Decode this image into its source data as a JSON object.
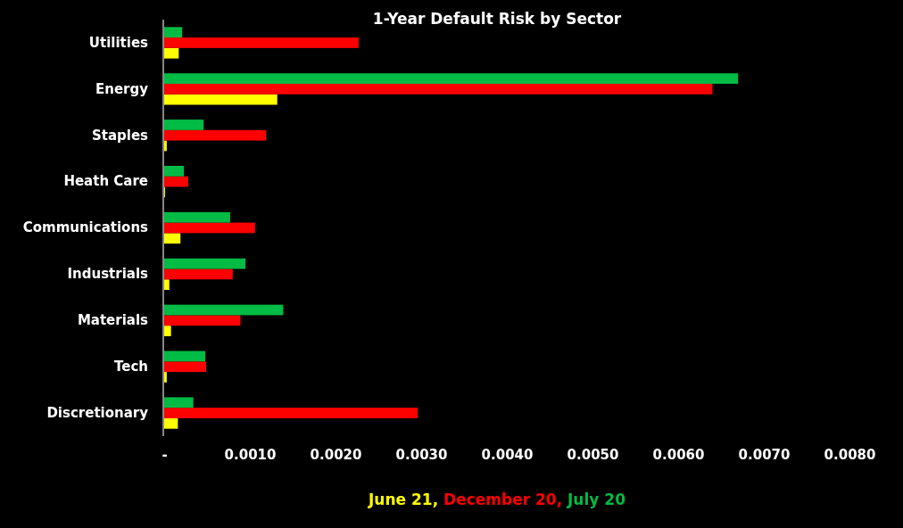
{
  "chart_data": {
    "type": "bar",
    "title": "1-Year Default Risk by Sector",
    "orientation": "horizontal",
    "categories": [
      "Utilities",
      "Energy",
      "Staples",
      "Heath Care",
      "Communications",
      "Industrials",
      "Materials",
      "Tech",
      "Discretionary"
    ],
    "series": [
      {
        "name": "June 21,",
        "color": "#ffff00",
        "values": [
          0.00017,
          0.00132,
          3e-05,
          1e-05,
          0.00019,
          6e-05,
          8e-05,
          3e-05,
          0.00016
        ]
      },
      {
        "name": "December 20,",
        "color": "#ff0000",
        "values": [
          0.00227,
          0.0064,
          0.00119,
          0.00028,
          0.00106,
          0.0008,
          0.00089,
          0.00049,
          0.00296
        ]
      },
      {
        "name": "July 20",
        "color": "#00bb44",
        "values": [
          0.00021,
          0.0067,
          0.00046,
          0.00023,
          0.00077,
          0.00095,
          0.00139,
          0.00048,
          0.00034
        ]
      }
    ],
    "xlim": [
      0,
      0.008
    ],
    "xticks": [
      {
        "value": 0,
        "label": "-"
      },
      {
        "value": 0.001,
        "label": "0.0010"
      },
      {
        "value": 0.002,
        "label": "0.0020"
      },
      {
        "value": 0.003,
        "label": "0.0030"
      },
      {
        "value": 0.004,
        "label": "0.0040"
      },
      {
        "value": 0.005,
        "label": "0.0050"
      },
      {
        "value": 0.006,
        "label": "0.0060"
      },
      {
        "value": 0.007,
        "label": "0.0070"
      },
      {
        "value": 0.008,
        "label": "0.0080"
      }
    ],
    "grid": false,
    "legend": "bottom"
  }
}
